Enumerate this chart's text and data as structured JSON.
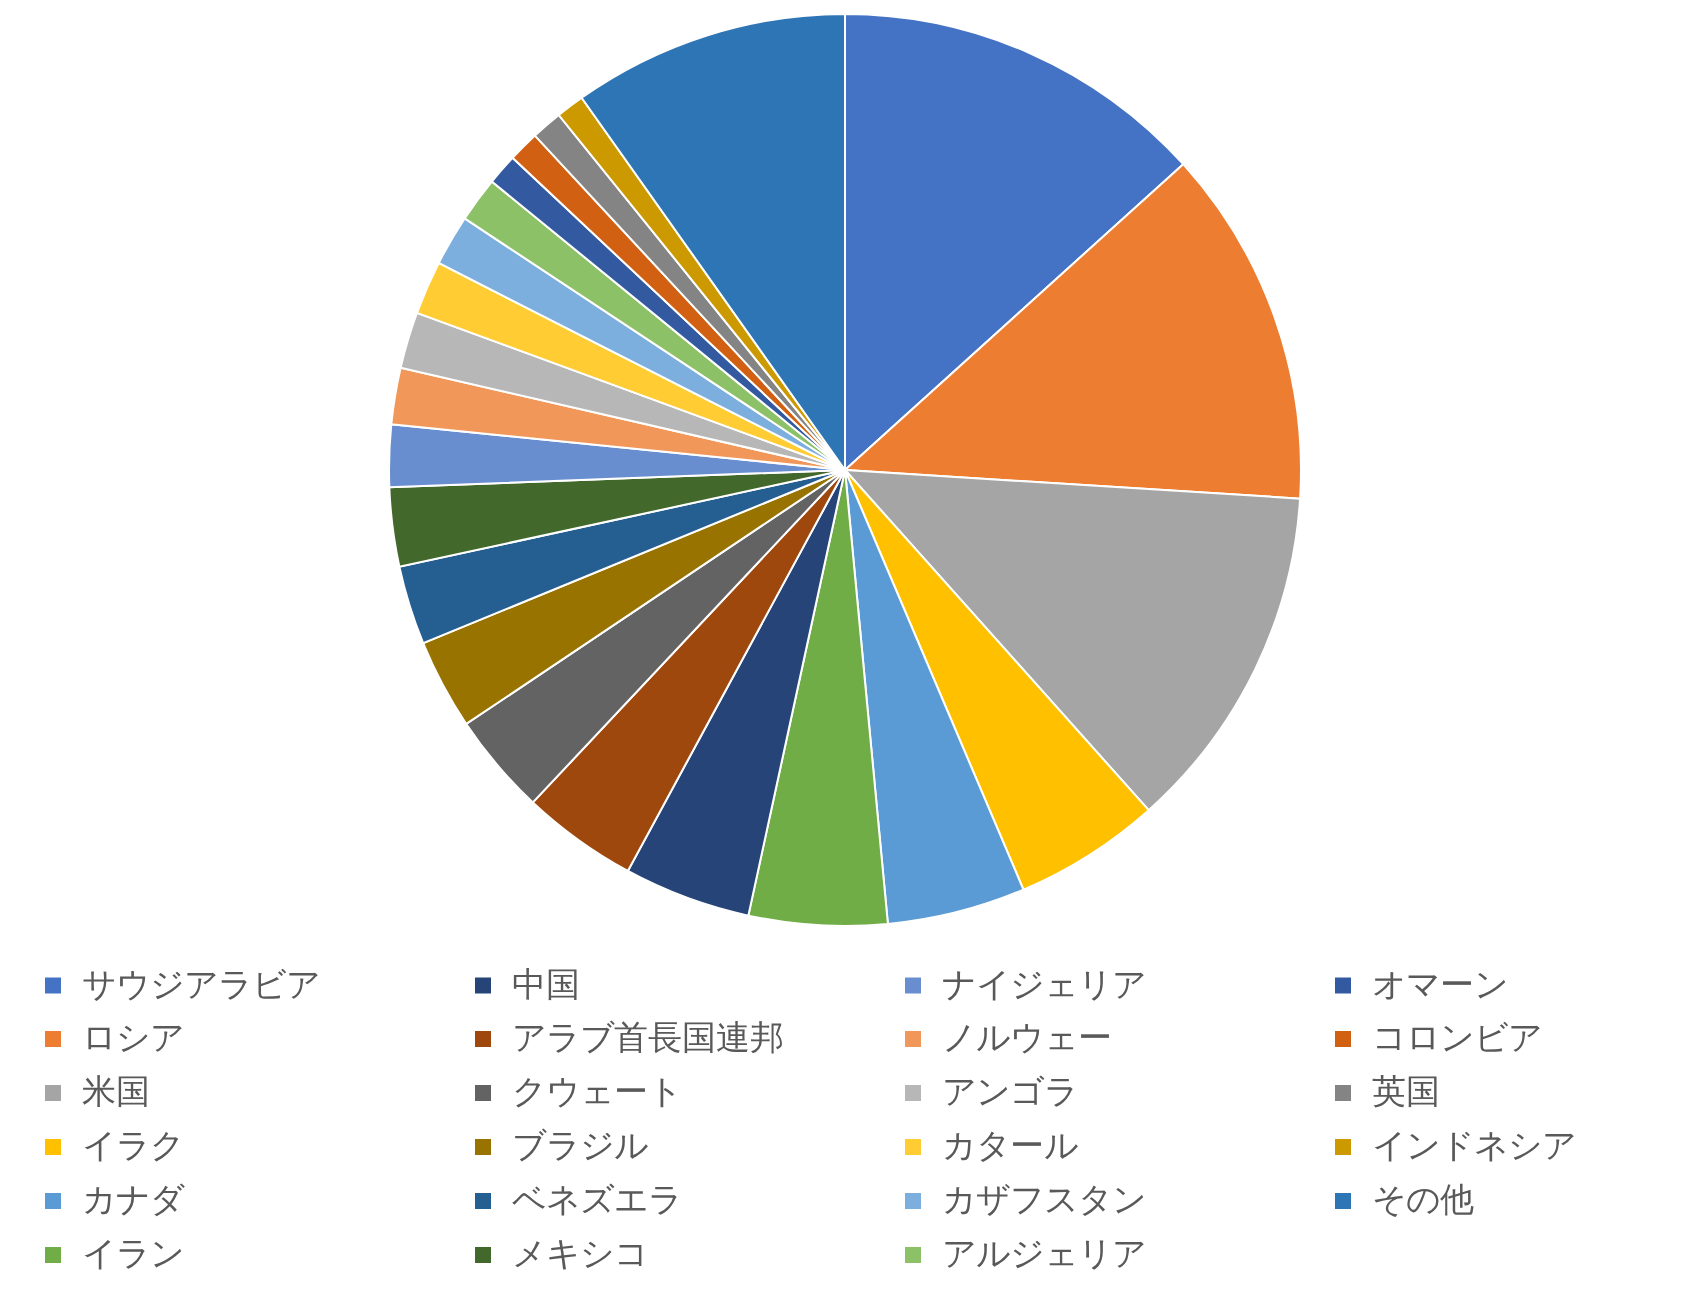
{
  "chart_data": {
    "type": "pie",
    "categories": [
      "サウジアラビア",
      "ロシア",
      "米国",
      "イラク",
      "カナダ",
      "イラン",
      "中国",
      "アラブ首長国連邦",
      "クウェート",
      "ブラジル",
      "ベネズエラ",
      "メキシコ",
      "ナイジェリア",
      "ノルウェー",
      "アンゴラ",
      "カタール",
      "カザフスタン",
      "アルジェリア",
      "オマーン",
      "コロンビア",
      "英国",
      "インドネシア",
      "その他"
    ],
    "values": [
      13.3,
      12.7,
      12.4,
      5.2,
      4.9,
      4.9,
      4.5,
      4.1,
      3.6,
      3.2,
      2.8,
      2.8,
      2.2,
      2.0,
      2.0,
      1.9,
      1.8,
      1.6,
      1.1,
      1.1,
      1.1,
      1.0,
      9.8
    ],
    "colors": [
      "#4472c4",
      "#ed7d31",
      "#a5a5a5",
      "#ffc000",
      "#5b9bd5",
      "#70ad47",
      "#264478",
      "#9e480e",
      "#636363",
      "#997300",
      "#255e91",
      "#43682b",
      "#698ed0",
      "#f1975a",
      "#b7b7b7",
      "#ffcd33",
      "#7cafdd",
      "#8cc168",
      "#335aa1",
      "#d26012",
      "#848484",
      "#cc9a00",
      "#2e75b6"
    ],
    "legend": "bottom"
  }
}
